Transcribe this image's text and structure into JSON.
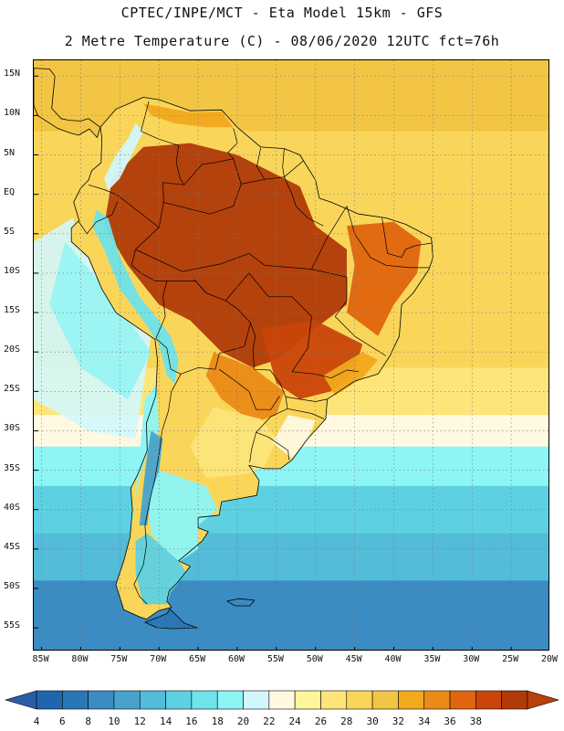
{
  "header": {
    "line1": "CPTEC/INPE/MCT -  Eta Model 15km - GFS",
    "line2": "2 Metre Temperature (C) - 08/06/2020 12UTC fct=76h"
  },
  "map": {
    "lat_labels": [
      "15N",
      "10N",
      "5N",
      "EQ",
      "5S",
      "10S",
      "15S",
      "20S",
      "25S",
      "30S",
      "35S",
      "40S",
      "45S",
      "50S",
      "55S"
    ],
    "lon_labels": [
      "85W",
      "80W",
      "75W",
      "70W",
      "65W",
      "60W",
      "55W",
      "50W",
      "45W",
      "40W",
      "35W",
      "30W",
      "25W",
      "20W"
    ],
    "lat_range": [
      -58,
      17
    ],
    "lon_range": [
      -86,
      -20
    ],
    "ocean_temperature_bands": [
      {
        "from_lat": 17,
        "to_lat": 8,
        "temp_c": 28
      },
      {
        "from_lat": 8,
        "to_lat": -22,
        "temp_c": 27
      },
      {
        "from_lat": -22,
        "to_lat": -28,
        "temp_c": 24
      },
      {
        "from_lat": -28,
        "to_lat": -32,
        "temp_c": 21
      },
      {
        "from_lat": -32,
        "to_lat": -37,
        "temp_c": 17
      },
      {
        "from_lat": -37,
        "to_lat": -43,
        "temp_c": 13
      },
      {
        "from_lat": -43,
        "to_lat": -49,
        "temp_c": 10
      },
      {
        "from_lat": -49,
        "to_lat": -58,
        "temp_c": 7
      }
    ],
    "pacific_coastal_temperature_c": 18
  },
  "colorbar": {
    "ticks": [
      "4",
      "6",
      "8",
      "10",
      "12",
      "14",
      "16",
      "18",
      "20",
      "22",
      "24",
      "26",
      "28",
      "30",
      "32",
      "34",
      "36",
      "38"
    ],
    "colors": [
      "#2166ac",
      "#2b77b5",
      "#3a8cc2",
      "#47a3ce",
      "#52bcd9",
      "#5dd1e2",
      "#6ee3ea",
      "#8df5f5",
      "#d2f7fb",
      "#fff9e2",
      "#fff59a",
      "#fde57a",
      "#f9d65a",
      "#f2c644",
      "#f1a91d",
      "#ea8a17",
      "#e0650f",
      "#c9450a",
      "#b03a08"
    ],
    "underflow_color": "#2a5da6",
    "overflow_color": "#b8410c"
  }
}
